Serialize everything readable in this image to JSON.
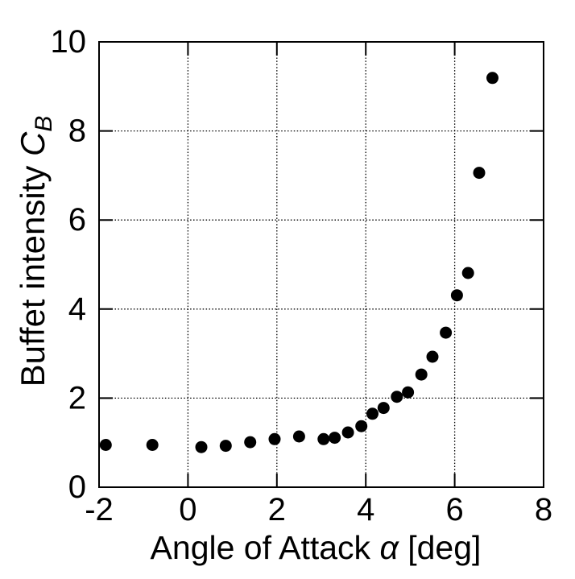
{
  "figure": {
    "background_color": "#ffffff",
    "ink_color": "#000000"
  },
  "chart_data": {
    "type": "scatter",
    "title": "",
    "xlabel": "Angle of Attack α [deg]",
    "ylabel": "Buffet intensity C_B",
    "xlabel_parts": {
      "prefix": "Angle of Attack ",
      "symbol": "α",
      "suffix": " [deg]"
    },
    "ylabel_parts": {
      "prefix": "Buffet intensity ",
      "symbol": "C",
      "subscript": "B"
    },
    "xlim": [
      -2,
      8
    ],
    "ylim": [
      0,
      10
    ],
    "x_ticks": [
      -2,
      0,
      2,
      4,
      6,
      8
    ],
    "y_ticks": [
      0,
      2,
      4,
      6,
      8,
      10
    ],
    "grid": true,
    "grid_style": "dotted",
    "legend": "none",
    "marker": {
      "shape": "circle",
      "color": "#000000",
      "radius_px": 7.5
    },
    "series": [
      {
        "name": "buffet-intensity-vs-alpha",
        "x": [
          -1.85,
          -0.8,
          0.3,
          0.85,
          1.4,
          1.95,
          2.5,
          3.05,
          3.3,
          3.6,
          3.9,
          4.15,
          4.4,
          4.7,
          4.95,
          5.25,
          5.5,
          5.8,
          6.05,
          6.3,
          6.55,
          6.85
        ],
        "y": [
          0.95,
          0.95,
          0.9,
          0.93,
          1.01,
          1.08,
          1.14,
          1.08,
          1.11,
          1.23,
          1.37,
          1.65,
          1.78,
          2.03,
          2.13,
          2.53,
          2.93,
          3.47,
          4.31,
          4.81,
          7.06,
          9.19
        ]
      }
    ]
  }
}
